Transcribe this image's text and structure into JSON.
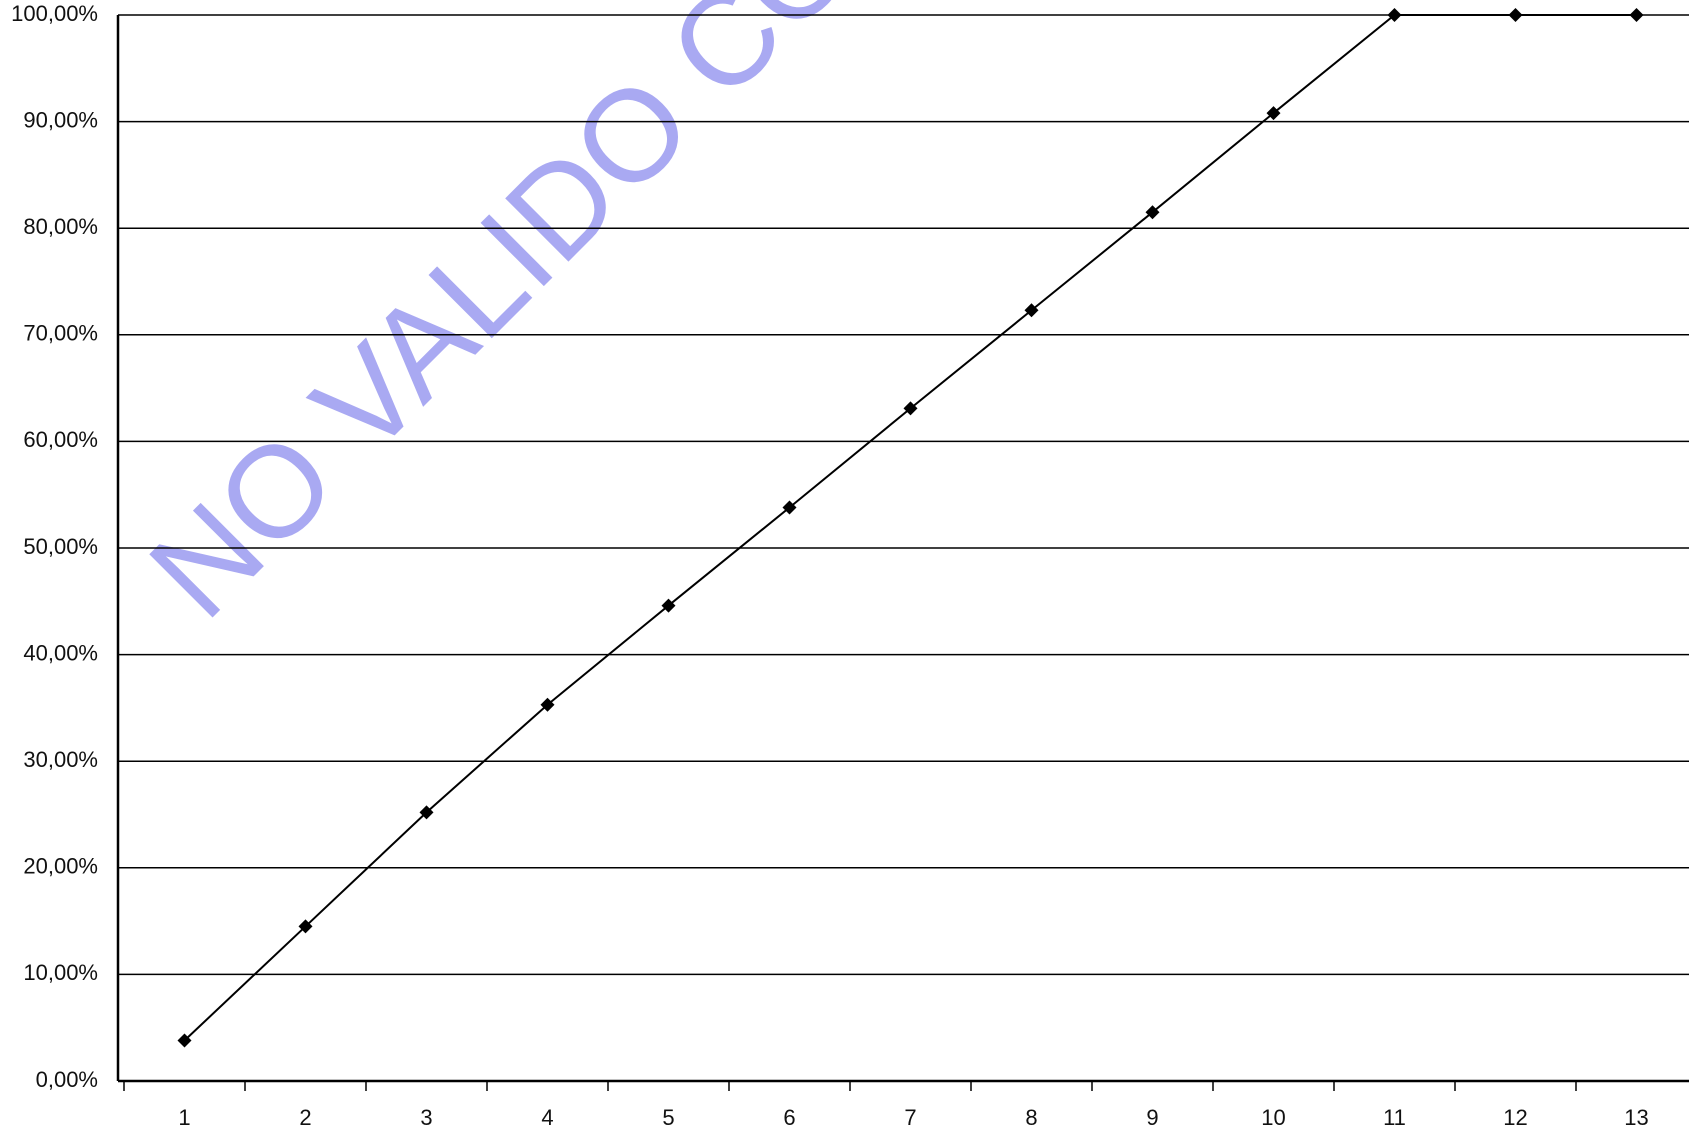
{
  "chart_data": {
    "type": "line",
    "annotations": [
      "NO VALIDO COMO ORI"
    ],
    "categories": [
      "1",
      "2",
      "3",
      "4",
      "5",
      "6",
      "7",
      "8",
      "9",
      "10",
      "11",
      "12",
      "13"
    ],
    "series": [
      {
        "color": "#000000",
        "values": [
          3.8,
          14.5,
          25.2,
          35.3,
          44.6,
          53.8,
          63.1,
          72.3,
          81.5,
          90.8,
          100,
          100,
          100
        ]
      }
    ],
    "ylim": [
      0,
      100
    ],
    "yticks": [
      {
        "value": 0,
        "label": "0,00%"
      },
      {
        "value": 10,
        "label": "10,00%"
      },
      {
        "value": 20,
        "label": "20,00%"
      },
      {
        "value": 30,
        "label": "30,00%"
      },
      {
        "value": 40,
        "label": "40,00%"
      },
      {
        "value": 50,
        "label": "50,00%"
      },
      {
        "value": 60,
        "label": "60,00%"
      },
      {
        "value": 70,
        "label": "70,00%"
      },
      {
        "value": 80,
        "label": "80,00%"
      },
      {
        "value": 90,
        "label": "90,00%"
      },
      {
        "value": 100,
        "label": "100,00%"
      }
    ],
    "grid": true
  }
}
